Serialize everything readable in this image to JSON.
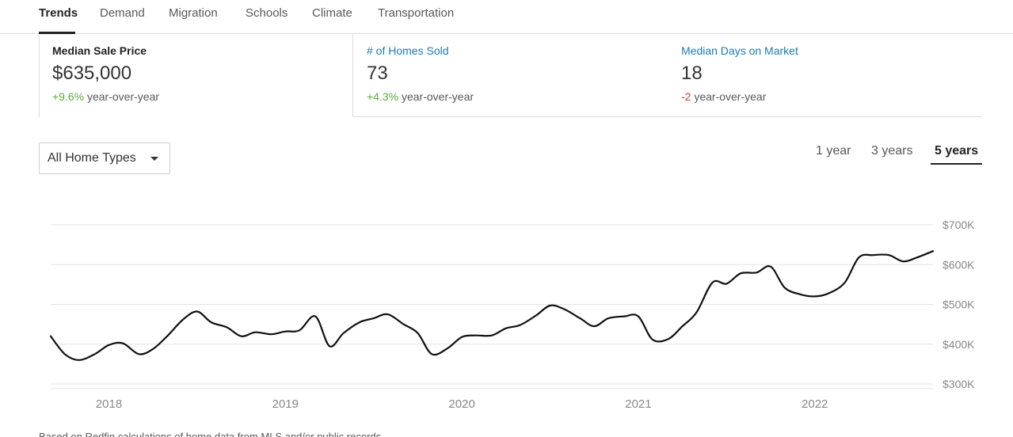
{
  "tabs": [
    {
      "label": "Trends",
      "active": true
    },
    {
      "label": "Demand"
    },
    {
      "label": "Migration"
    },
    {
      "label": "Schools"
    },
    {
      "label": "Climate"
    },
    {
      "label": "Transportation"
    }
  ],
  "stats": [
    {
      "label": "Median Sale Price",
      "value": "$635,000",
      "change": "+9.6%",
      "change_suffix": " year-over-year",
      "selected": true
    },
    {
      "label": "# of Homes Sold",
      "value": "73",
      "change": "+4.3%",
      "change_suffix": " year-over-year"
    },
    {
      "label": "Median Days on Market",
      "value": "18",
      "change": "-2",
      "change_suffix": " year-over-year"
    }
  ],
  "filter": {
    "home_type": "All Home Types"
  },
  "ranges": [
    {
      "label": "1 year"
    },
    {
      "label": "3 years"
    },
    {
      "label": "5 years",
      "active": true
    }
  ],
  "colors": {
    "positive": "#5bab3e",
    "negative": "#d23a32",
    "link": "#1a7bb0"
  },
  "footnote": "Based on Redfin calculations of home data from MLS and/or public records.",
  "chart_data": {
    "type": "line",
    "title": "",
    "xlabel": "",
    "ylabel": "",
    "ylim": [
      300000,
      700000
    ],
    "y_ticks": [
      {
        "value": 700000,
        "label": "$700K"
      },
      {
        "value": 600000,
        "label": "$600K"
      },
      {
        "value": 500000,
        "label": "$500K"
      },
      {
        "value": 400000,
        "label": "$400K"
      },
      {
        "value": 300000,
        "label": "$300K"
      }
    ],
    "x_ticks": [
      {
        "value": 2018.0,
        "label": "2018"
      },
      {
        "value": 2019.0,
        "label": "2019"
      },
      {
        "value": 2020.0,
        "label": "2020"
      },
      {
        "value": 2021.0,
        "label": "2021"
      },
      {
        "value": 2022.0,
        "label": "2022"
      }
    ],
    "xlim": [
      2017.67,
      2022.67
    ],
    "grid": true,
    "series": [
      {
        "x": [
          2017.67,
          2017.75,
          2017.83,
          2017.92,
          2018.0,
          2018.08,
          2018.17,
          2018.25,
          2018.33,
          2018.42,
          2018.5,
          2018.58,
          2018.67,
          2018.75,
          2018.83,
          2018.92,
          2019.0,
          2019.08,
          2019.17,
          2019.25,
          2019.33,
          2019.42,
          2019.5,
          2019.58,
          2019.67,
          2019.75,
          2019.83,
          2019.92,
          2020.0,
          2020.08,
          2020.17,
          2020.25,
          2020.33,
          2020.42,
          2020.5,
          2020.58,
          2020.67,
          2020.75,
          2020.83,
          2020.92,
          2021.0,
          2021.08,
          2021.17,
          2021.25,
          2021.33,
          2021.42,
          2021.5,
          2021.58,
          2021.67,
          2021.75,
          2021.83,
          2021.92,
          2022.0,
          2022.08,
          2022.17,
          2022.25,
          2022.33,
          2022.42,
          2022.5,
          2022.58,
          2022.67
        ],
        "values": [
          420000,
          375000,
          360000,
          375000,
          398000,
          402000,
          375000,
          388000,
          420000,
          462000,
          482000,
          455000,
          442000,
          420000,
          430000,
          425000,
          432000,
          435000,
          470000,
          395000,
          428000,
          455000,
          465000,
          475000,
          450000,
          428000,
          375000,
          390000,
          418000,
          422000,
          422000,
          440000,
          448000,
          472000,
          497000,
          488000,
          465000,
          445000,
          465000,
          470000,
          470000,
          412000,
          413000,
          445000,
          480000,
          555000,
          552000,
          578000,
          580000,
          595000,
          542000,
          525000,
          520000,
          528000,
          555000,
          618000,
          624000,
          624000,
          608000,
          618000,
          634000
        ]
      }
    ]
  }
}
